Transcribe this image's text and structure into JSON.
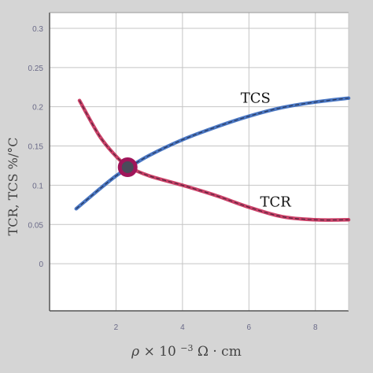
{
  "chart_data": {
    "type": "line",
    "xlabel_prefix": "ρ × 10",
    "xlabel_exp": "−3",
    "xlabel_unit": "Ω · cm",
    "ylabel": "TCR, TCS  %/°C",
    "xlim": [
      0,
      9
    ],
    "ylim": [
      -0.06,
      0.32
    ],
    "x_ticks": [
      2,
      4,
      6,
      8
    ],
    "y_ticks": [
      0,
      0.05,
      0.1,
      0.15,
      0.2,
      0.25,
      0.3
    ],
    "y_tick_labels": [
      "0",
      "0.05",
      "0.1",
      "0.15",
      "0.2",
      "0.25",
      "0.3"
    ],
    "grid": true,
    "series": [
      {
        "name": "TCS",
        "color": "#2a5fb8",
        "x": [
          0.8,
          1.5,
          2.0,
          2.4,
          3.0,
          4.0,
          5.0,
          6.0,
          7.0,
          8.0,
          9.0
        ],
        "y": [
          0.07,
          0.095,
          0.112,
          0.123,
          0.138,
          0.158,
          0.174,
          0.188,
          0.199,
          0.206,
          0.211
        ]
      },
      {
        "name": "TCR",
        "color": "#c2204d",
        "x": [
          0.9,
          1.5,
          2.0,
          2.4,
          3.0,
          4.0,
          5.0,
          6.0,
          7.0,
          8.0,
          9.0
        ],
        "y": [
          0.208,
          0.163,
          0.137,
          0.123,
          0.112,
          0.1,
          0.087,
          0.072,
          0.06,
          0.056,
          0.056
        ]
      }
    ],
    "annotations": [
      {
        "text": "TCS",
        "x": 6.2,
        "y": 0.205
      },
      {
        "text": "TCR",
        "x": 6.8,
        "y": 0.073
      }
    ],
    "marker": {
      "x": 2.35,
      "y": 0.123,
      "fill": "#4a4a5a",
      "ring": "#a0155a"
    },
    "colors": {
      "plot_bg": "#ffffff",
      "page_bg": "#d5d5d5",
      "grid": "#c4c4c4",
      "frame": "#555555"
    }
  }
}
